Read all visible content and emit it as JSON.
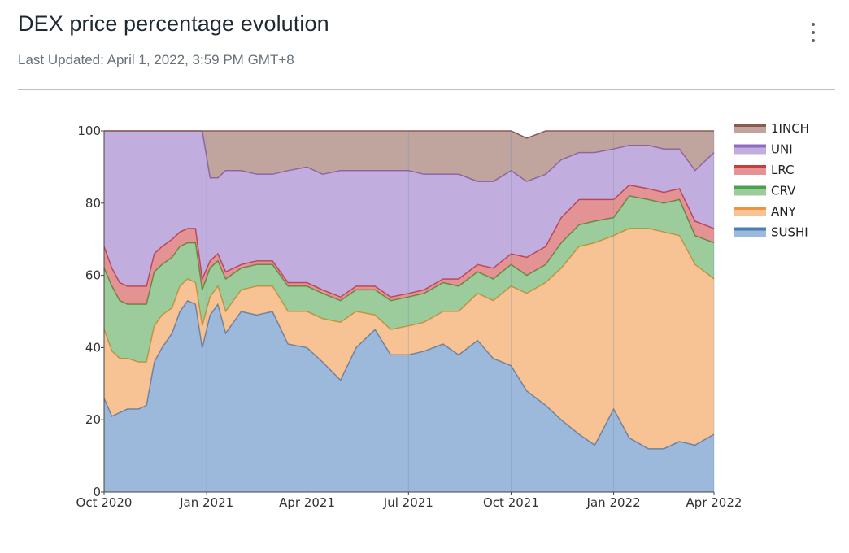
{
  "header": {
    "title": "DEX price percentage evolution",
    "last_updated": "Last Updated: April 1, 2022, 3:59 PM GMT+8",
    "menu_icon": "more-vert-icon"
  },
  "chart_data": {
    "type": "area",
    "stacked": true,
    "title": "",
    "xlabel": "",
    "ylabel": "",
    "ylim": [
      0,
      100
    ],
    "yticks": [
      0,
      20,
      40,
      60,
      80,
      100
    ],
    "xlim": [
      "2020-10-01",
      "2022-04-01"
    ],
    "xticks": [
      {
        "date": "2020-10-01",
        "label": "Oct 2020"
      },
      {
        "date": "2021-01-01",
        "label": "Jan 2021"
      },
      {
        "date": "2021-04-01",
        "label": "Apr 2021"
      },
      {
        "date": "2021-07-01",
        "label": "Jul 2021"
      },
      {
        "date": "2021-10-01",
        "label": "Oct 2021"
      },
      {
        "date": "2022-01-01",
        "label": "Jan 2022"
      },
      {
        "date": "2022-04-01",
        "label": "Apr 2022"
      }
    ],
    "grid": true,
    "legend_position": "right",
    "x": [
      "2020-10-01",
      "2020-10-08",
      "2020-10-15",
      "2020-10-22",
      "2020-11-01",
      "2020-11-08",
      "2020-11-15",
      "2020-11-22",
      "2020-12-01",
      "2020-12-08",
      "2020-12-15",
      "2020-12-22",
      "2020-12-28",
      "2021-01-04",
      "2021-01-11",
      "2021-01-18",
      "2021-02-01",
      "2021-02-15",
      "2021-03-01",
      "2021-03-15",
      "2021-04-01",
      "2021-04-15",
      "2021-05-01",
      "2021-05-15",
      "2021-06-01",
      "2021-06-15",
      "2021-07-01",
      "2021-07-15",
      "2021-08-01",
      "2021-08-15",
      "2021-09-01",
      "2021-09-15",
      "2021-10-01",
      "2021-10-15",
      "2021-11-01",
      "2021-11-15",
      "2021-12-01",
      "2021-12-15",
      "2022-01-01",
      "2022-01-15",
      "2022-02-01",
      "2022-02-15",
      "2022-03-01",
      "2022-03-15",
      "2022-04-01"
    ],
    "series": [
      {
        "name": "SUSHI",
        "color": "#4a7ebb",
        "values": [
          26,
          21,
          22,
          23,
          23,
          24,
          36,
          40,
          44,
          50,
          53,
          52,
          40,
          49,
          52,
          44,
          50,
          49,
          50,
          41,
          40,
          36,
          31,
          40,
          45,
          38,
          38,
          39,
          41,
          38,
          42,
          37,
          35,
          28,
          24,
          20,
          16,
          13,
          23,
          15,
          12,
          12,
          14,
          13,
          16
        ]
      },
      {
        "name": "ANY",
        "color": "#f0913e",
        "values": [
          19,
          18,
          15,
          14,
          13,
          12,
          10,
          9,
          7,
          7,
          6,
          6,
          6,
          5,
          5,
          6,
          6,
          8,
          7,
          9,
          10,
          12,
          16,
          10,
          4,
          7,
          8,
          8,
          9,
          12,
          13,
          16,
          22,
          27,
          34,
          42,
          52,
          56,
          48,
          58,
          61,
          60,
          57,
          50,
          43
        ]
      },
      {
        "name": "CRV",
        "color": "#4aa14a",
        "values": [
          17,
          18,
          16,
          15,
          16,
          16,
          15,
          14,
          14,
          11,
          10,
          11,
          10,
          8,
          7,
          9,
          6,
          6,
          6,
          7,
          7,
          7,
          6,
          6,
          7,
          8,
          8,
          8,
          8,
          7,
          6,
          6,
          6,
          5,
          5,
          7,
          6,
          6,
          5,
          9,
          8,
          8,
          10,
          8,
          10
        ]
      },
      {
        "name": "LRC",
        "color": "#cc3a3a",
        "values": [
          6,
          5,
          5,
          5,
          5,
          5,
          5,
          5,
          5,
          4,
          4,
          4,
          3,
          2,
          2,
          2,
          1,
          1,
          1,
          1,
          1,
          1,
          1,
          1,
          1,
          1,
          1,
          1,
          1,
          2,
          2,
          3,
          3,
          5,
          5,
          7,
          7,
          6,
          5,
          3,
          3,
          3,
          3,
          4,
          4
        ]
      },
      {
        "name": "UNI",
        "color": "#8e6cc2",
        "values": [
          32,
          38,
          42,
          43,
          43,
          43,
          34,
          32,
          30,
          28,
          27,
          27,
          41,
          23,
          21,
          28,
          26,
          24,
          24,
          31,
          32,
          32,
          35,
          32,
          32,
          35,
          34,
          32,
          29,
          29,
          23,
          24,
          23,
          21,
          20,
          16,
          13,
          13,
          14,
          11,
          12,
          12,
          11,
          14,
          21
        ]
      },
      {
        "name": "1INCH",
        "color": "#8c5b50",
        "values": [
          0,
          0,
          0,
          0,
          0,
          0,
          0,
          0,
          0,
          0,
          0,
          0,
          0,
          13,
          13,
          11,
          11,
          12,
          12,
          11,
          10,
          12,
          11,
          11,
          11,
          11,
          11,
          12,
          12,
          12,
          14,
          14,
          11,
          12,
          12,
          8,
          6,
          6,
          5,
          4,
          4,
          5,
          5,
          11,
          6
        ]
      }
    ]
  }
}
